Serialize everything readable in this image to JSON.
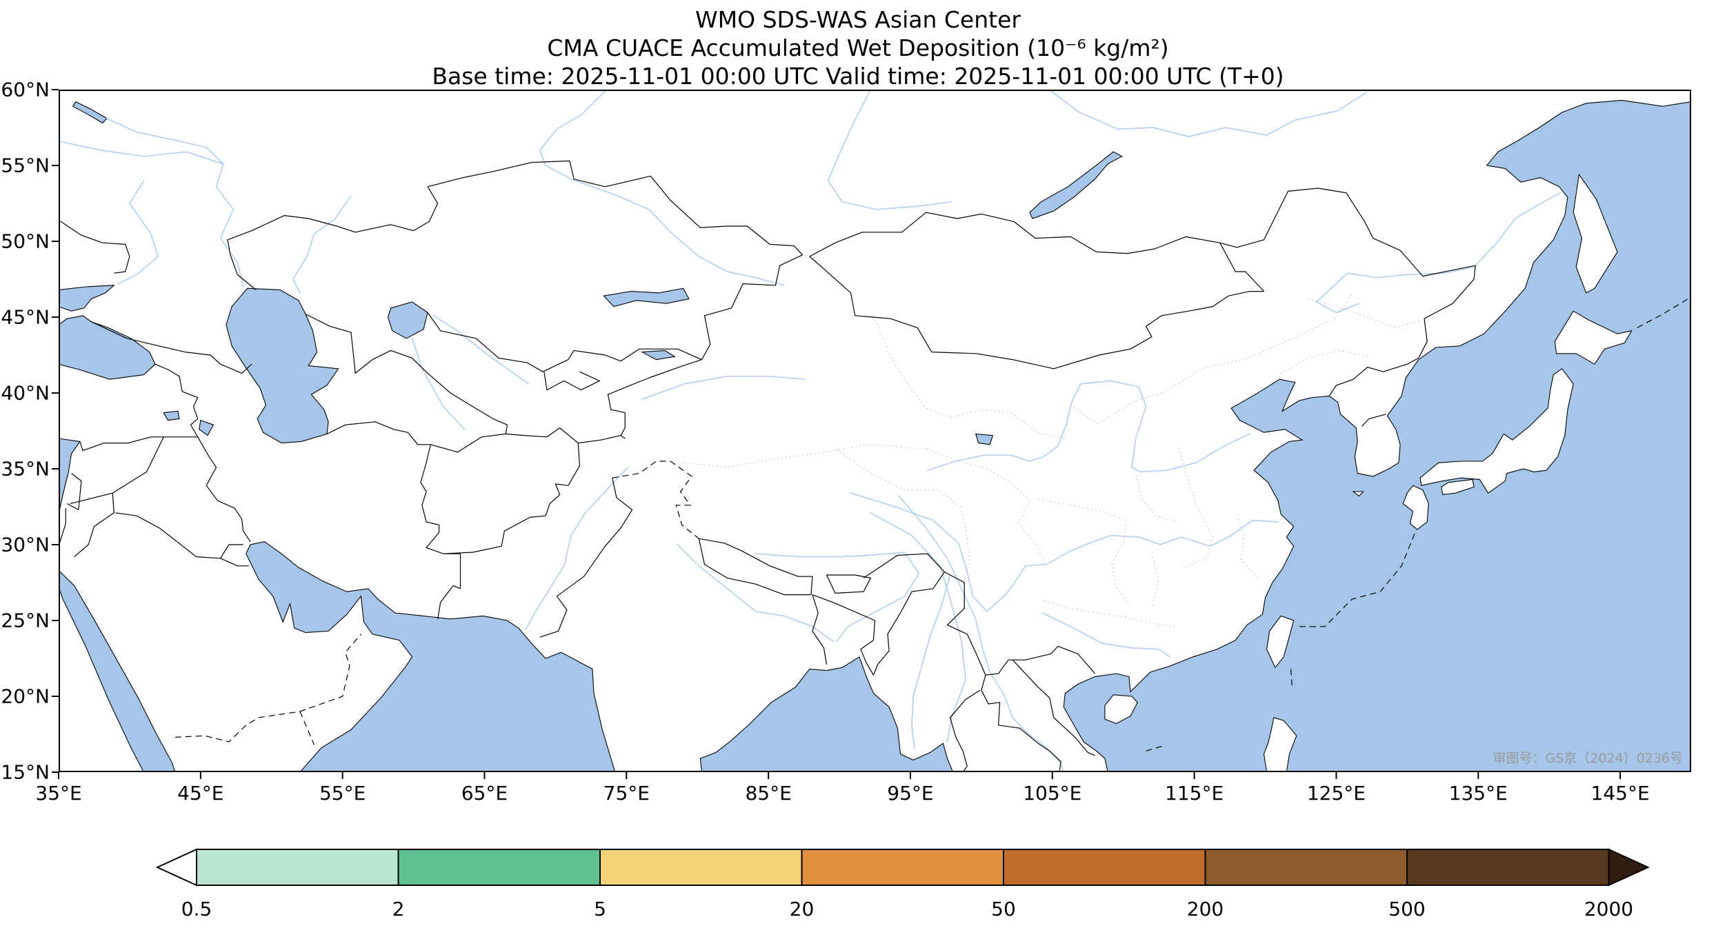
{
  "titles": {
    "line1": "WMO SDS-WAS Asian Center",
    "line2": "CMA CUACE Accumulated Wet Deposition (10⁻⁶ kg/m²)",
    "line3": "Base time: 2025-11-01 00:00 UTC Valid time: 2025-11-01 00:00 UTC (T+0)"
  },
  "map": {
    "watermark": "审图号：GS京（2024）0236号",
    "x_ticks": [
      "35°E",
      "45°E",
      "55°E",
      "65°E",
      "75°E",
      "85°E",
      "95°E",
      "105°E",
      "115°E",
      "125°E",
      "135°E",
      "145°E"
    ],
    "y_ticks": [
      "60°N",
      "55°N",
      "50°N",
      "45°N",
      "40°N",
      "35°N",
      "30°N",
      "25°N",
      "20°N",
      "15°N"
    ],
    "lon_min": 35,
    "lon_max": 150,
    "lat_min": 15,
    "lat_max": 60,
    "colors": {
      "water": "#a5c6e9",
      "land": "#ffffff",
      "coastline": "#000000",
      "river": "#b3d1f0",
      "province_border": "#bdbdbd"
    }
  },
  "colorbar": {
    "tick_labels": [
      "0.5",
      "2",
      "5",
      "20",
      "50",
      "200",
      "500",
      "2000"
    ],
    "segment_colors": [
      "#ffffff",
      "#b9e6d2",
      "#5fc192",
      "#f2d376",
      "#e0903e",
      "#bd6c29",
      "#8c5a2b",
      "#5a3a1e",
      "#301d0e"
    ]
  }
}
